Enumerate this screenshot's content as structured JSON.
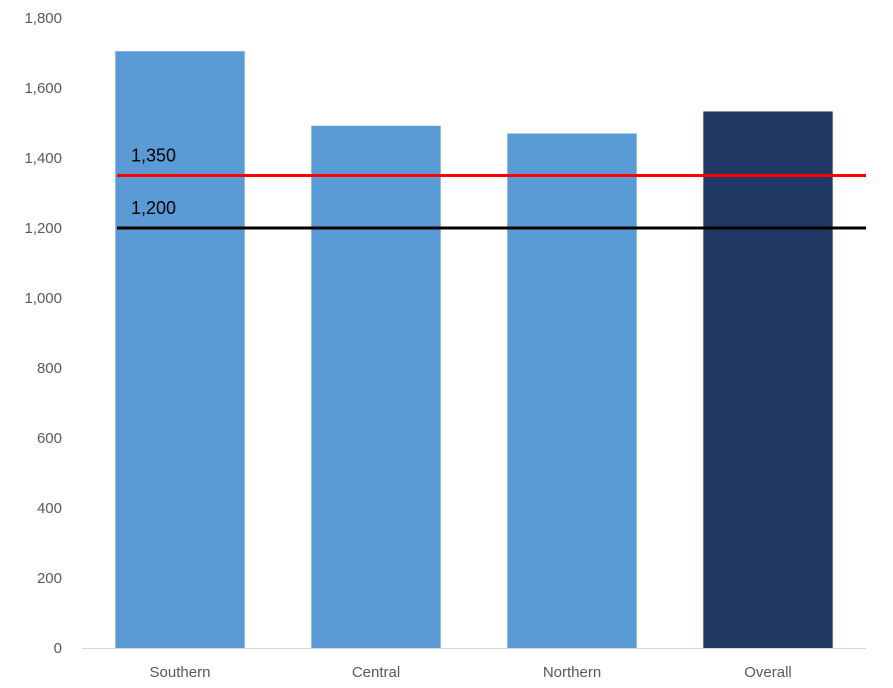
{
  "chart_data": {
    "type": "bar",
    "categories": [
      "Southern",
      "Central",
      "Northern",
      "Overall"
    ],
    "values": [
      1705,
      1492,
      1470,
      1533
    ],
    "bar_colors": [
      "#5b9bd5",
      "#5b9bd5",
      "#5b9bd5",
      "#203864"
    ],
    "ylim": [
      0,
      1800
    ],
    "ytick_step": 200,
    "ytick_labels": [
      "0",
      "200",
      "400",
      "600",
      "800",
      "1,000",
      "1,200",
      "1,400",
      "1,600",
      "1,800"
    ],
    "reference_lines": [
      {
        "value": 1350,
        "label": "1,350",
        "color": "#ff0000"
      },
      {
        "value": 1200,
        "label": "1,200",
        "color": "#000000"
      }
    ],
    "grid": false,
    "title": "",
    "xlabel": "",
    "ylabel": ""
  }
}
